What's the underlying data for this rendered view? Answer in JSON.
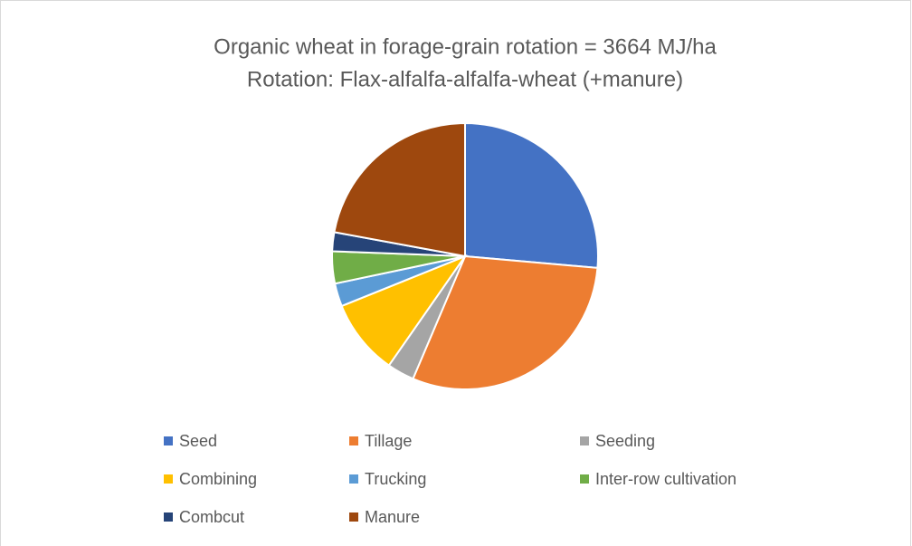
{
  "chart_data": {
    "type": "pie",
    "title": "Organic wheat in forage-grain rotation = 3664 MJ/ha",
    "subtitle": "Rotation: Flax-alfalfa-alfalfa-wheat (+manure)",
    "categories": [
      "Seed",
      "Tillage",
      "Seeding",
      "Combining",
      "Trucking",
      "Inter-row cultivation",
      "Combcut",
      "Manure"
    ],
    "values": [
      26.4,
      30,
      3.3,
      9.2,
      2.8,
      3.9,
      2.3,
      22.1
    ],
    "colors": [
      "#4472c4",
      "#ed7d31",
      "#a5a5a5",
      "#ffc000",
      "#5b9bd5",
      "#70ad47",
      "#264478",
      "#9e480e"
    ],
    "legend": "bottom"
  }
}
